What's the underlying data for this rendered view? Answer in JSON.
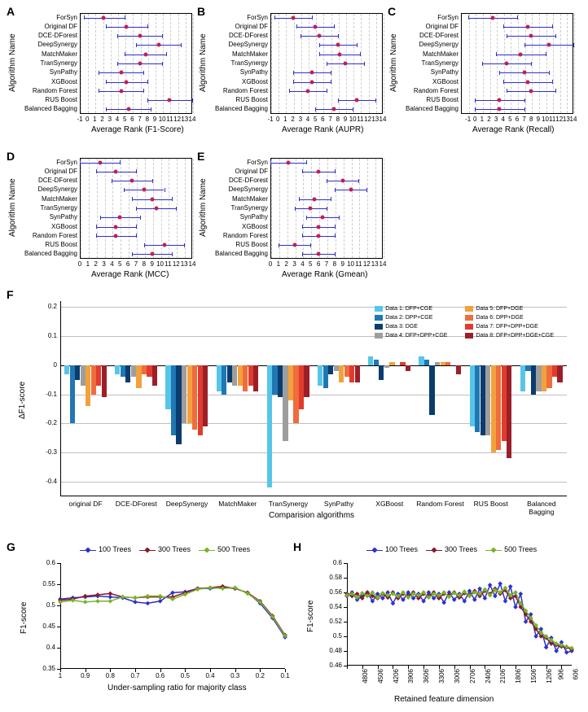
{
  "panels_ABCDE_common": {
    "algorithms": [
      "ForSyn",
      "Original DF",
      "DCE-DForest",
      "DeepSynergy",
      "MatchMaker",
      "TranSynergy",
      "SynPathy",
      "XGBoost",
      "Random Forest",
      "RUS Boost",
      "Balanced Bagging"
    ],
    "xticks": [
      -1,
      0,
      1,
      2,
      3,
      4,
      5,
      6,
      7,
      8,
      9,
      10,
      11,
      12,
      13,
      14
    ],
    "ylabel": "Algorithm Name",
    "grid_color": "#cccccc",
    "line_color": "#3030d0",
    "marker_color": "#c02050",
    "background_color": "#ffffff",
    "label_fontsize": 10,
    "tick_fontsize": 8
  },
  "panel_A": {
    "label": "A",
    "xlabel": "Average Rank (F1-Score)",
    "points": [
      {
        "mean": 2.2,
        "lo": -0.5,
        "hi": 5.0
      },
      {
        "mean": 5.2,
        "lo": 2.5,
        "hi": 8.0
      },
      {
        "mean": 7.0,
        "lo": 4.0,
        "hi": 10.0
      },
      {
        "mean": 9.5,
        "lo": 6.5,
        "hi": 12.5
      },
      {
        "mean": 7.8,
        "lo": 5.0,
        "hi": 10.5
      },
      {
        "mean": 7.0,
        "lo": 4.0,
        "hi": 10.0
      },
      {
        "mean": 4.5,
        "lo": 1.5,
        "hi": 7.5
      },
      {
        "mean": 5.2,
        "lo": 2.5,
        "hi": 8.0
      },
      {
        "mean": 4.5,
        "lo": 1.5,
        "hi": 7.5
      },
      {
        "mean": 11.0,
        "lo": 8.0,
        "hi": 14.0
      },
      {
        "mean": 5.5,
        "lo": 2.5,
        "hi": 8.5
      }
    ],
    "xlim": [
      -1,
      14
    ]
  },
  "panel_B": {
    "label": "B",
    "xlabel": "Average Rank (AUPR)",
    "points": [
      {
        "mean": 2.0,
        "lo": -0.5,
        "hi": 4.5
      },
      {
        "mean": 5.0,
        "lo": 2.5,
        "hi": 7.5
      },
      {
        "mean": 5.5,
        "lo": 3.0,
        "hi": 8.0
      },
      {
        "mean": 8.0,
        "lo": 5.5,
        "hi": 10.5
      },
      {
        "mean": 8.2,
        "lo": 5.5,
        "hi": 11.0
      },
      {
        "mean": 9.0,
        "lo": 6.5,
        "hi": 11.5
      },
      {
        "mean": 4.5,
        "lo": 2.0,
        "hi": 7.0
      },
      {
        "mean": 4.5,
        "lo": 2.0,
        "hi": 7.0
      },
      {
        "mean": 4.0,
        "lo": 1.5,
        "hi": 6.5
      },
      {
        "mean": 10.5,
        "lo": 8.0,
        "hi": 13.0
      },
      {
        "mean": 7.5,
        "lo": 5.0,
        "hi": 10.0
      }
    ],
    "xlim": [
      -1,
      14
    ]
  },
  "panel_C": {
    "label": "C",
    "xlabel": "Average Rank (Recall)",
    "points": [
      {
        "mean": 2.5,
        "lo": -1.0,
        "hi": 6.0
      },
      {
        "mean": 7.5,
        "lo": 4.0,
        "hi": 11.0
      },
      {
        "mean": 8.0,
        "lo": 4.5,
        "hi": 11.5
      },
      {
        "mean": 10.5,
        "lo": 7.0,
        "hi": 14.0
      },
      {
        "mean": 6.5,
        "lo": 3.0,
        "hi": 10.0
      },
      {
        "mean": 4.5,
        "lo": 1.0,
        "hi": 8.0
      },
      {
        "mean": 7.0,
        "lo": 3.5,
        "hi": 10.5
      },
      {
        "mean": 7.5,
        "lo": 4.0,
        "hi": 11.0
      },
      {
        "mean": 8.0,
        "lo": 4.5,
        "hi": 11.5
      },
      {
        "mean": 3.5,
        "lo": 0.0,
        "hi": 7.0
      },
      {
        "mean": 3.5,
        "lo": 0.0,
        "hi": 7.0
      }
    ],
    "xlim": [
      -2,
      14
    ]
  },
  "panel_D": {
    "label": "D",
    "xlabel": "Average Rank (MCC)",
    "points": [
      {
        "mean": 2.5,
        "lo": 0.0,
        "hi": 5.0
      },
      {
        "mean": 4.5,
        "lo": 2.0,
        "hi": 7.0
      },
      {
        "mean": 6.5,
        "lo": 4.0,
        "hi": 9.0
      },
      {
        "mean": 8.0,
        "lo": 5.5,
        "hi": 10.5
      },
      {
        "mean": 9.0,
        "lo": 6.5,
        "hi": 11.5
      },
      {
        "mean": 9.5,
        "lo": 7.0,
        "hi": 12.0
      },
      {
        "mean": 5.0,
        "lo": 2.5,
        "hi": 7.5
      },
      {
        "mean": 4.5,
        "lo": 2.0,
        "hi": 7.0
      },
      {
        "mean": 4.5,
        "lo": 2.0,
        "hi": 7.0
      },
      {
        "mean": 10.5,
        "lo": 8.0,
        "hi": 13.0
      },
      {
        "mean": 9.0,
        "lo": 6.5,
        "hi": 11.5
      }
    ],
    "xlim": [
      0,
      14
    ]
  },
  "panel_E": {
    "label": "E",
    "xlabel": "Average Rank (Gmean)",
    "points": [
      {
        "mean": 2.2,
        "lo": 0.0,
        "hi": 4.5
      },
      {
        "mean": 6.0,
        "lo": 4.0,
        "hi": 8.0
      },
      {
        "mean": 9.0,
        "lo": 7.0,
        "hi": 11.0
      },
      {
        "mean": 10.0,
        "lo": 8.0,
        "hi": 12.0
      },
      {
        "mean": 5.5,
        "lo": 3.5,
        "hi": 7.5
      },
      {
        "mean": 5.0,
        "lo": 3.0,
        "hi": 7.0
      },
      {
        "mean": 6.5,
        "lo": 4.5,
        "hi": 8.5
      },
      {
        "mean": 6.0,
        "lo": 4.0,
        "hi": 8.0
      },
      {
        "mean": 6.0,
        "lo": 4.0,
        "hi": 8.0
      },
      {
        "mean": 3.0,
        "lo": 1.0,
        "hi": 5.0
      },
      {
        "mean": 6.0,
        "lo": 4.0,
        "hi": 8.0
      }
    ],
    "xlim": [
      0,
      14
    ]
  },
  "panel_F": {
    "label": "F",
    "ylabel": "ΔF1-score",
    "xlabel": "Comparision algorithms",
    "ylim": [
      -0.45,
      0.22
    ],
    "yticks": [
      0.2,
      0.1,
      0,
      -0.1,
      -0.2,
      -0.3,
      -0.4
    ],
    "background_color": "#ffffff",
    "grid_color": "#808080",
    "categories": [
      "original DF",
      "DCE-DForest",
      "DeepSynergy",
      "MatchMaker",
      "TranSynergy",
      "SynPathy",
      "XGBoost",
      "Random Forest",
      "RUS Boost",
      "Balanced Bagging"
    ],
    "legend": [
      {
        "label": "Data 1: DFP+CGE",
        "color": "#57c5e8"
      },
      {
        "label": "Data 2: DPP+CGE",
        "color": "#1f77b4"
      },
      {
        "label": "Data 3: DGE",
        "color": "#0b3c6e"
      },
      {
        "label": "Data 4: DFP+DPP+CGE",
        "color": "#9e9e9e"
      },
      {
        "label": "Data 5: DFP+DGE",
        "color": "#f1a23c"
      },
      {
        "label": "Data 6: DPP+DGE",
        "color": "#f06c3c"
      },
      {
        "label": "Data 7: DFP+DPP+DGE",
        "color": "#e03c2e"
      },
      {
        "label": "Data 8: DFP+DPP+DGE+CGE",
        "color": "#9c1f28"
      }
    ],
    "series": [
      [
        -0.03,
        -0.2,
        -0.05,
        -0.07,
        -0.14,
        -0.1,
        -0.07,
        -0.11
      ],
      [
        -0.03,
        -0.04,
        -0.06,
        -0.04,
        -0.08,
        -0.03,
        -0.04,
        -0.07
      ],
      [
        -0.15,
        -0.24,
        -0.27,
        -0.2,
        -0.2,
        -0.22,
        -0.24,
        -0.21
      ],
      [
        -0.09,
        -0.1,
        -0.06,
        -0.07,
        -0.07,
        -0.09,
        -0.07,
        -0.09
      ],
      [
        -0.42,
        -0.1,
        -0.11,
        -0.26,
        -0.12,
        -0.2,
        -0.15,
        -0.11
      ],
      [
        -0.07,
        -0.08,
        -0.03,
        -0.02,
        -0.06,
        -0.04,
        -0.06,
        -0.06
      ],
      [
        0.03,
        0.02,
        -0.05,
        -0.01,
        0.01,
        0.0,
        0.01,
        -0.02
      ],
      [
        0.03,
        0.02,
        -0.17,
        0.01,
        0.01,
        0.01,
        0.0,
        -0.03
      ],
      [
        -0.21,
        -0.23,
        -0.24,
        -0.24,
        -0.3,
        -0.29,
        -0.26,
        -0.32
      ],
      [
        -0.09,
        -0.02,
        -0.1,
        -0.09,
        -0.09,
        -0.08,
        -0.04,
        -0.06
      ]
    ]
  },
  "panels_GH_common": {
    "legend": [
      {
        "label": "100 Trees",
        "color": "#2b33c7"
      },
      {
        "label": "300 Trees",
        "color": "#8b1a2e"
      },
      {
        "label": "500 Trees",
        "color": "#78b428"
      }
    ],
    "ylabel": "F1-score",
    "line_width": 1.5,
    "marker_style": "diamond",
    "tick_fontsize": 8
  },
  "panel_G": {
    "label": "G",
    "xlabel": "Under-sampling ratio for majority class",
    "ylim": [
      0.35,
      0.6
    ],
    "yticks": [
      0.6,
      0.55,
      0.5,
      0.45,
      0.4,
      0.35
    ],
    "xticks": [
      "1",
      "0.9",
      "0.8",
      "0.7",
      "0.6",
      "0.5",
      "0.4",
      "0.3",
      "0.2",
      "0.1"
    ],
    "n_points": 19,
    "series": {
      "t100": [
        0.515,
        0.518,
        0.52,
        0.522,
        0.52,
        0.518,
        0.508,
        0.505,
        0.51,
        0.53,
        0.532,
        0.54,
        0.54,
        0.542,
        0.54,
        0.53,
        0.505,
        0.47,
        0.425
      ],
      "t300": [
        0.512,
        0.515,
        0.522,
        0.525,
        0.528,
        0.52,
        0.518,
        0.52,
        0.52,
        0.52,
        0.53,
        0.54,
        0.542,
        0.545,
        0.54,
        0.53,
        0.51,
        0.475,
        0.43
      ],
      "t500": [
        0.508,
        0.512,
        0.508,
        0.51,
        0.51,
        0.52,
        0.518,
        0.522,
        0.522,
        0.515,
        0.526,
        0.538,
        0.542,
        0.54,
        0.542,
        0.528,
        0.508,
        0.473,
        0.428
      ]
    }
  },
  "panel_H": {
    "label": "H",
    "xlabel": "Retained feature dimension",
    "ylim": [
      0.46,
      0.6
    ],
    "yticks": [
      0.6,
      0.58,
      0.56,
      0.54,
      0.52,
      0.5,
      0.48,
      0.46
    ],
    "xticks": [
      "4806",
      "4506",
      "4206",
      "3906",
      "3606",
      "3306",
      "3006",
      "2706",
      "2406",
      "2106",
      "1806",
      "1506",
      "1206",
      "906",
      "606"
    ],
    "n_points": 45,
    "series": {
      "t100": [
        0.555,
        0.56,
        0.55,
        0.555,
        0.56,
        0.548,
        0.558,
        0.552,
        0.56,
        0.545,
        0.558,
        0.55,
        0.56,
        0.552,
        0.558,
        0.548,
        0.56,
        0.552,
        0.558,
        0.546,
        0.56,
        0.55,
        0.558,
        0.548,
        0.562,
        0.55,
        0.565,
        0.552,
        0.57,
        0.555,
        0.572,
        0.548,
        0.568,
        0.54,
        0.558,
        0.52,
        0.53,
        0.5,
        0.51,
        0.485,
        0.498,
        0.48,
        0.492,
        0.478,
        0.48
      ],
      "t300": [
        0.558,
        0.555,
        0.558,
        0.552,
        0.56,
        0.555,
        0.552,
        0.558,
        0.553,
        0.56,
        0.552,
        0.558,
        0.555,
        0.56,
        0.552,
        0.558,
        0.555,
        0.56,
        0.552,
        0.558,
        0.556,
        0.56,
        0.553,
        0.559,
        0.556,
        0.562,
        0.555,
        0.562,
        0.558,
        0.565,
        0.558,
        0.563,
        0.552,
        0.555,
        0.54,
        0.53,
        0.52,
        0.51,
        0.5,
        0.498,
        0.49,
        0.488,
        0.486,
        0.485,
        0.482
      ],
      "t500": [
        0.556,
        0.558,
        0.553,
        0.559,
        0.555,
        0.56,
        0.553,
        0.559,
        0.556,
        0.558,
        0.555,
        0.56,
        0.553,
        0.558,
        0.556,
        0.56,
        0.553,
        0.558,
        0.556,
        0.56,
        0.554,
        0.559,
        0.556,
        0.561,
        0.555,
        0.56,
        0.558,
        0.564,
        0.556,
        0.563,
        0.56,
        0.566,
        0.556,
        0.56,
        0.545,
        0.535,
        0.525,
        0.515,
        0.505,
        0.5,
        0.495,
        0.49,
        0.488,
        0.486,
        0.484
      ]
    }
  }
}
